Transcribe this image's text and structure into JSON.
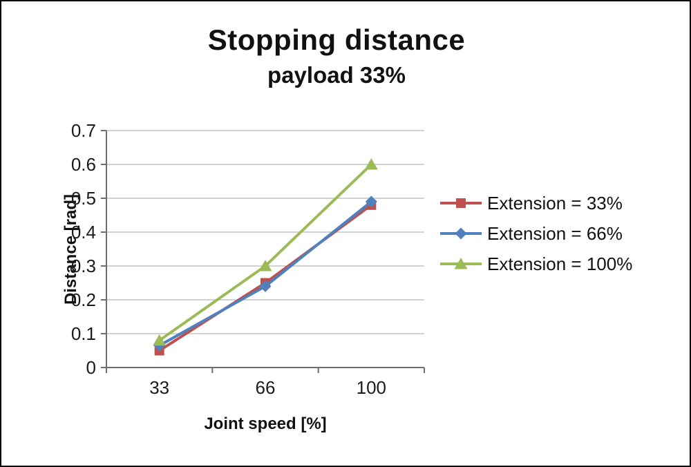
{
  "chart_data": {
    "type": "line",
    "title": "Stopping distance",
    "subtitle": "payload 33%",
    "xlabel": "Joint speed [%]",
    "ylabel": "Distance [rad]",
    "categories": [
      "33",
      "66",
      "100"
    ],
    "ylim": [
      0,
      0.7
    ],
    "ytick_step": 0.1,
    "grid": true,
    "legend_position": "right",
    "colors": {
      "gridline": "#c3c3c3",
      "axis": "#6e6e6e",
      "tick_text": "#1a1a1a"
    },
    "series": [
      {
        "name": "Extension = 33%",
        "marker": "square",
        "color": "#c0504d",
        "values": [
          0.05,
          0.25,
          0.48
        ]
      },
      {
        "name": "Extension = 66%",
        "marker": "diamond",
        "color": "#4f81bd",
        "values": [
          0.065,
          0.24,
          0.49
        ]
      },
      {
        "name": "Extension = 100%",
        "marker": "triangle",
        "color": "#9bbb59",
        "values": [
          0.08,
          0.3,
          0.6
        ]
      }
    ]
  }
}
